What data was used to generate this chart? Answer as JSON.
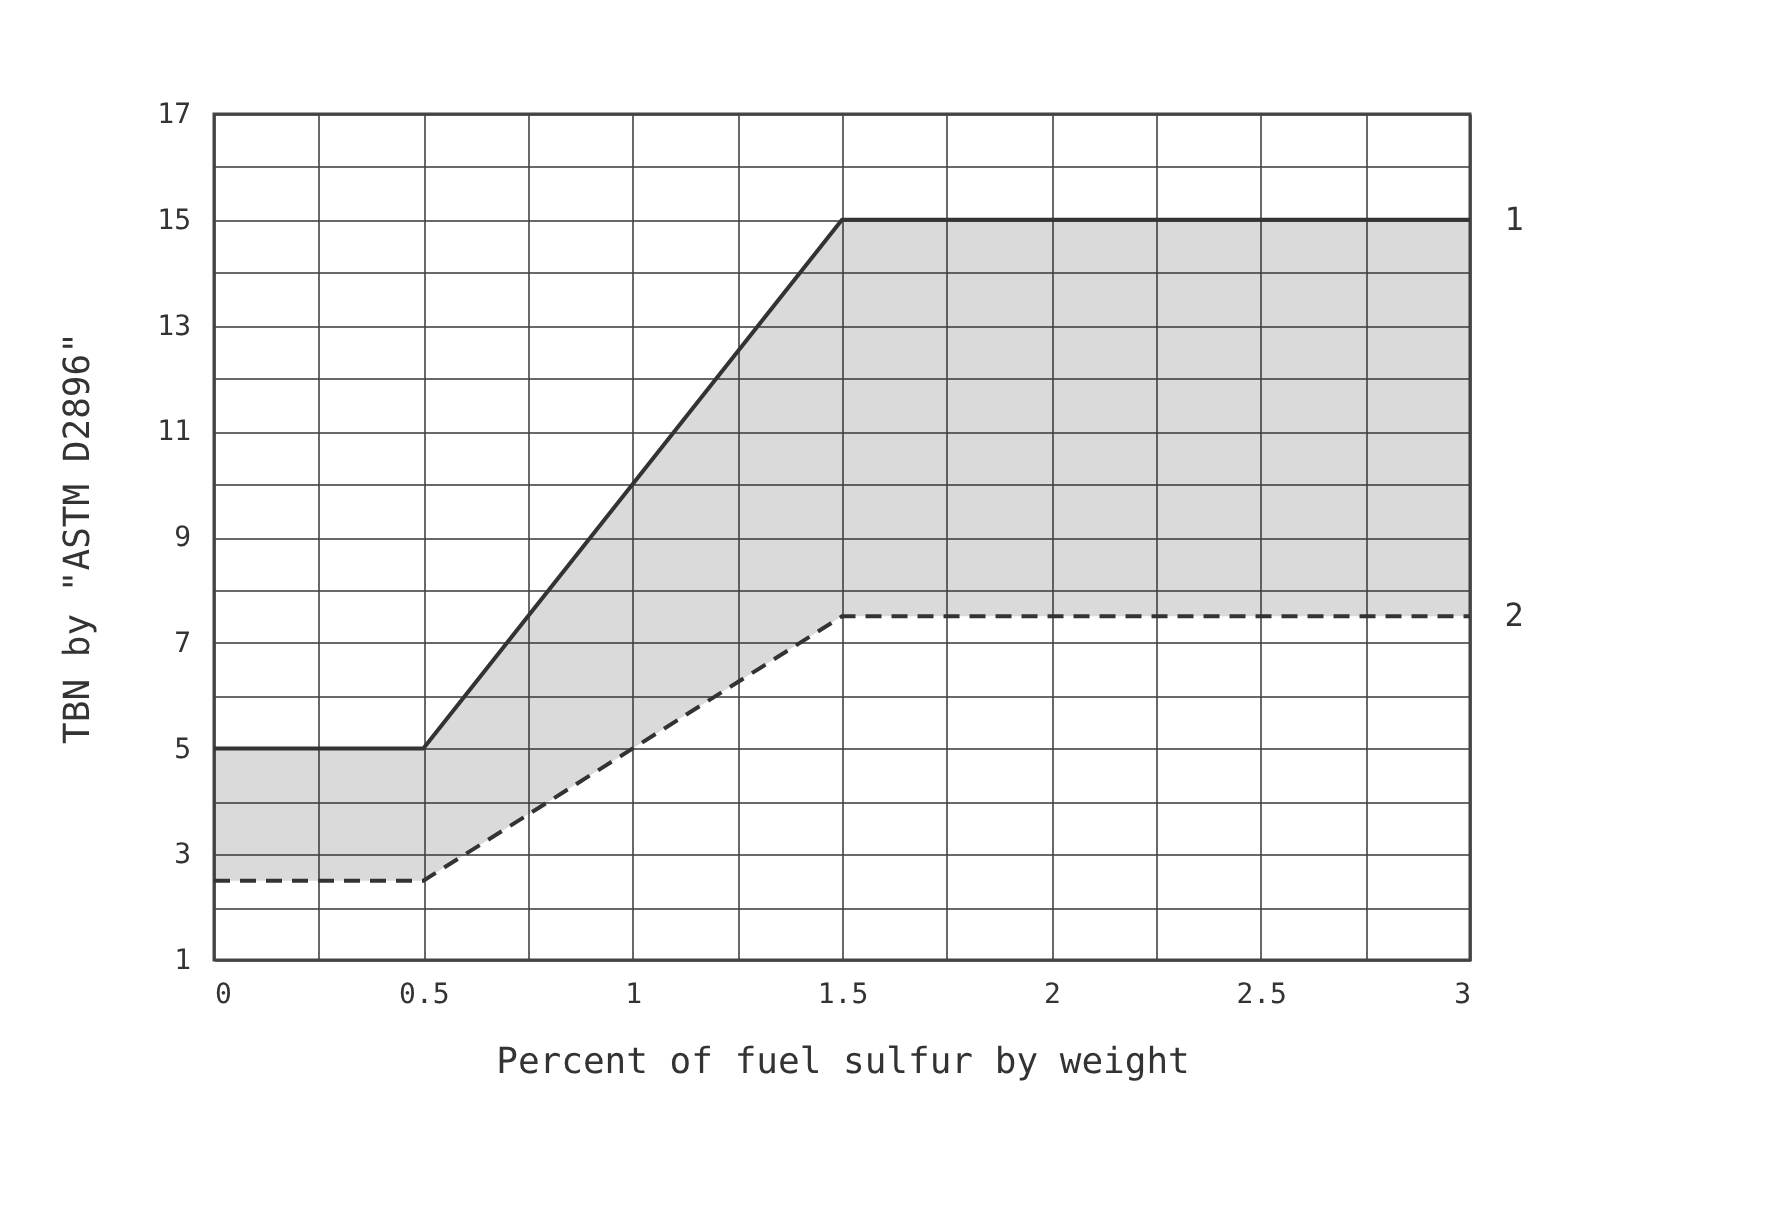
{
  "chart_data": {
    "type": "line",
    "xlabel": "Percent of fuel sulfur by weight",
    "ylabel": "TBN by \"ASTM D2896\"",
    "x": [
      0,
      0.5,
      1.5,
      3
    ],
    "series": [
      {
        "name": "1",
        "color": "#333333",
        "line_style": "solid",
        "values": [
          5,
          5,
          15,
          15
        ],
        "lower": [
          2.5,
          2.5,
          7.5,
          7.5
        ],
        "upper": [
          5,
          5,
          15,
          15
        ]
      },
      {
        "name": "2",
        "color": "#333333",
        "line_style": "dashed",
        "values": [
          2.5,
          2.5,
          7.5,
          7.5
        ]
      }
    ],
    "xlim": [
      0,
      3
    ],
    "xticks": [
      0,
      {
        "value": 0.25,
        "label": null
      },
      0.5,
      {
        "value": 0.75,
        "label": null
      },
      1,
      {
        "value": 1.25,
        "label": null
      },
      1.5,
      {
        "value": 1.75,
        "label": null
      },
      2,
      {
        "value": 2.25,
        "label": null
      },
      2.5,
      {
        "value": 2.75,
        "label": null
      },
      3
    ],
    "ylim": [
      1,
      17
    ],
    "yticks": [
      1,
      {
        "value": 2,
        "label": null
      },
      3,
      {
        "value": 4,
        "label": null
      },
      5,
      {
        "value": 6,
        "label": null
      },
      7,
      {
        "value": 8,
        "label": null
      },
      9,
      {
        "value": 10,
        "label": null
      },
      11,
      {
        "value": 12,
        "label": null
      },
      13,
      {
        "value": 14,
        "label": null
      },
      15,
      {
        "value": 16,
        "label": null
      },
      17
    ],
    "grid": true
  }
}
